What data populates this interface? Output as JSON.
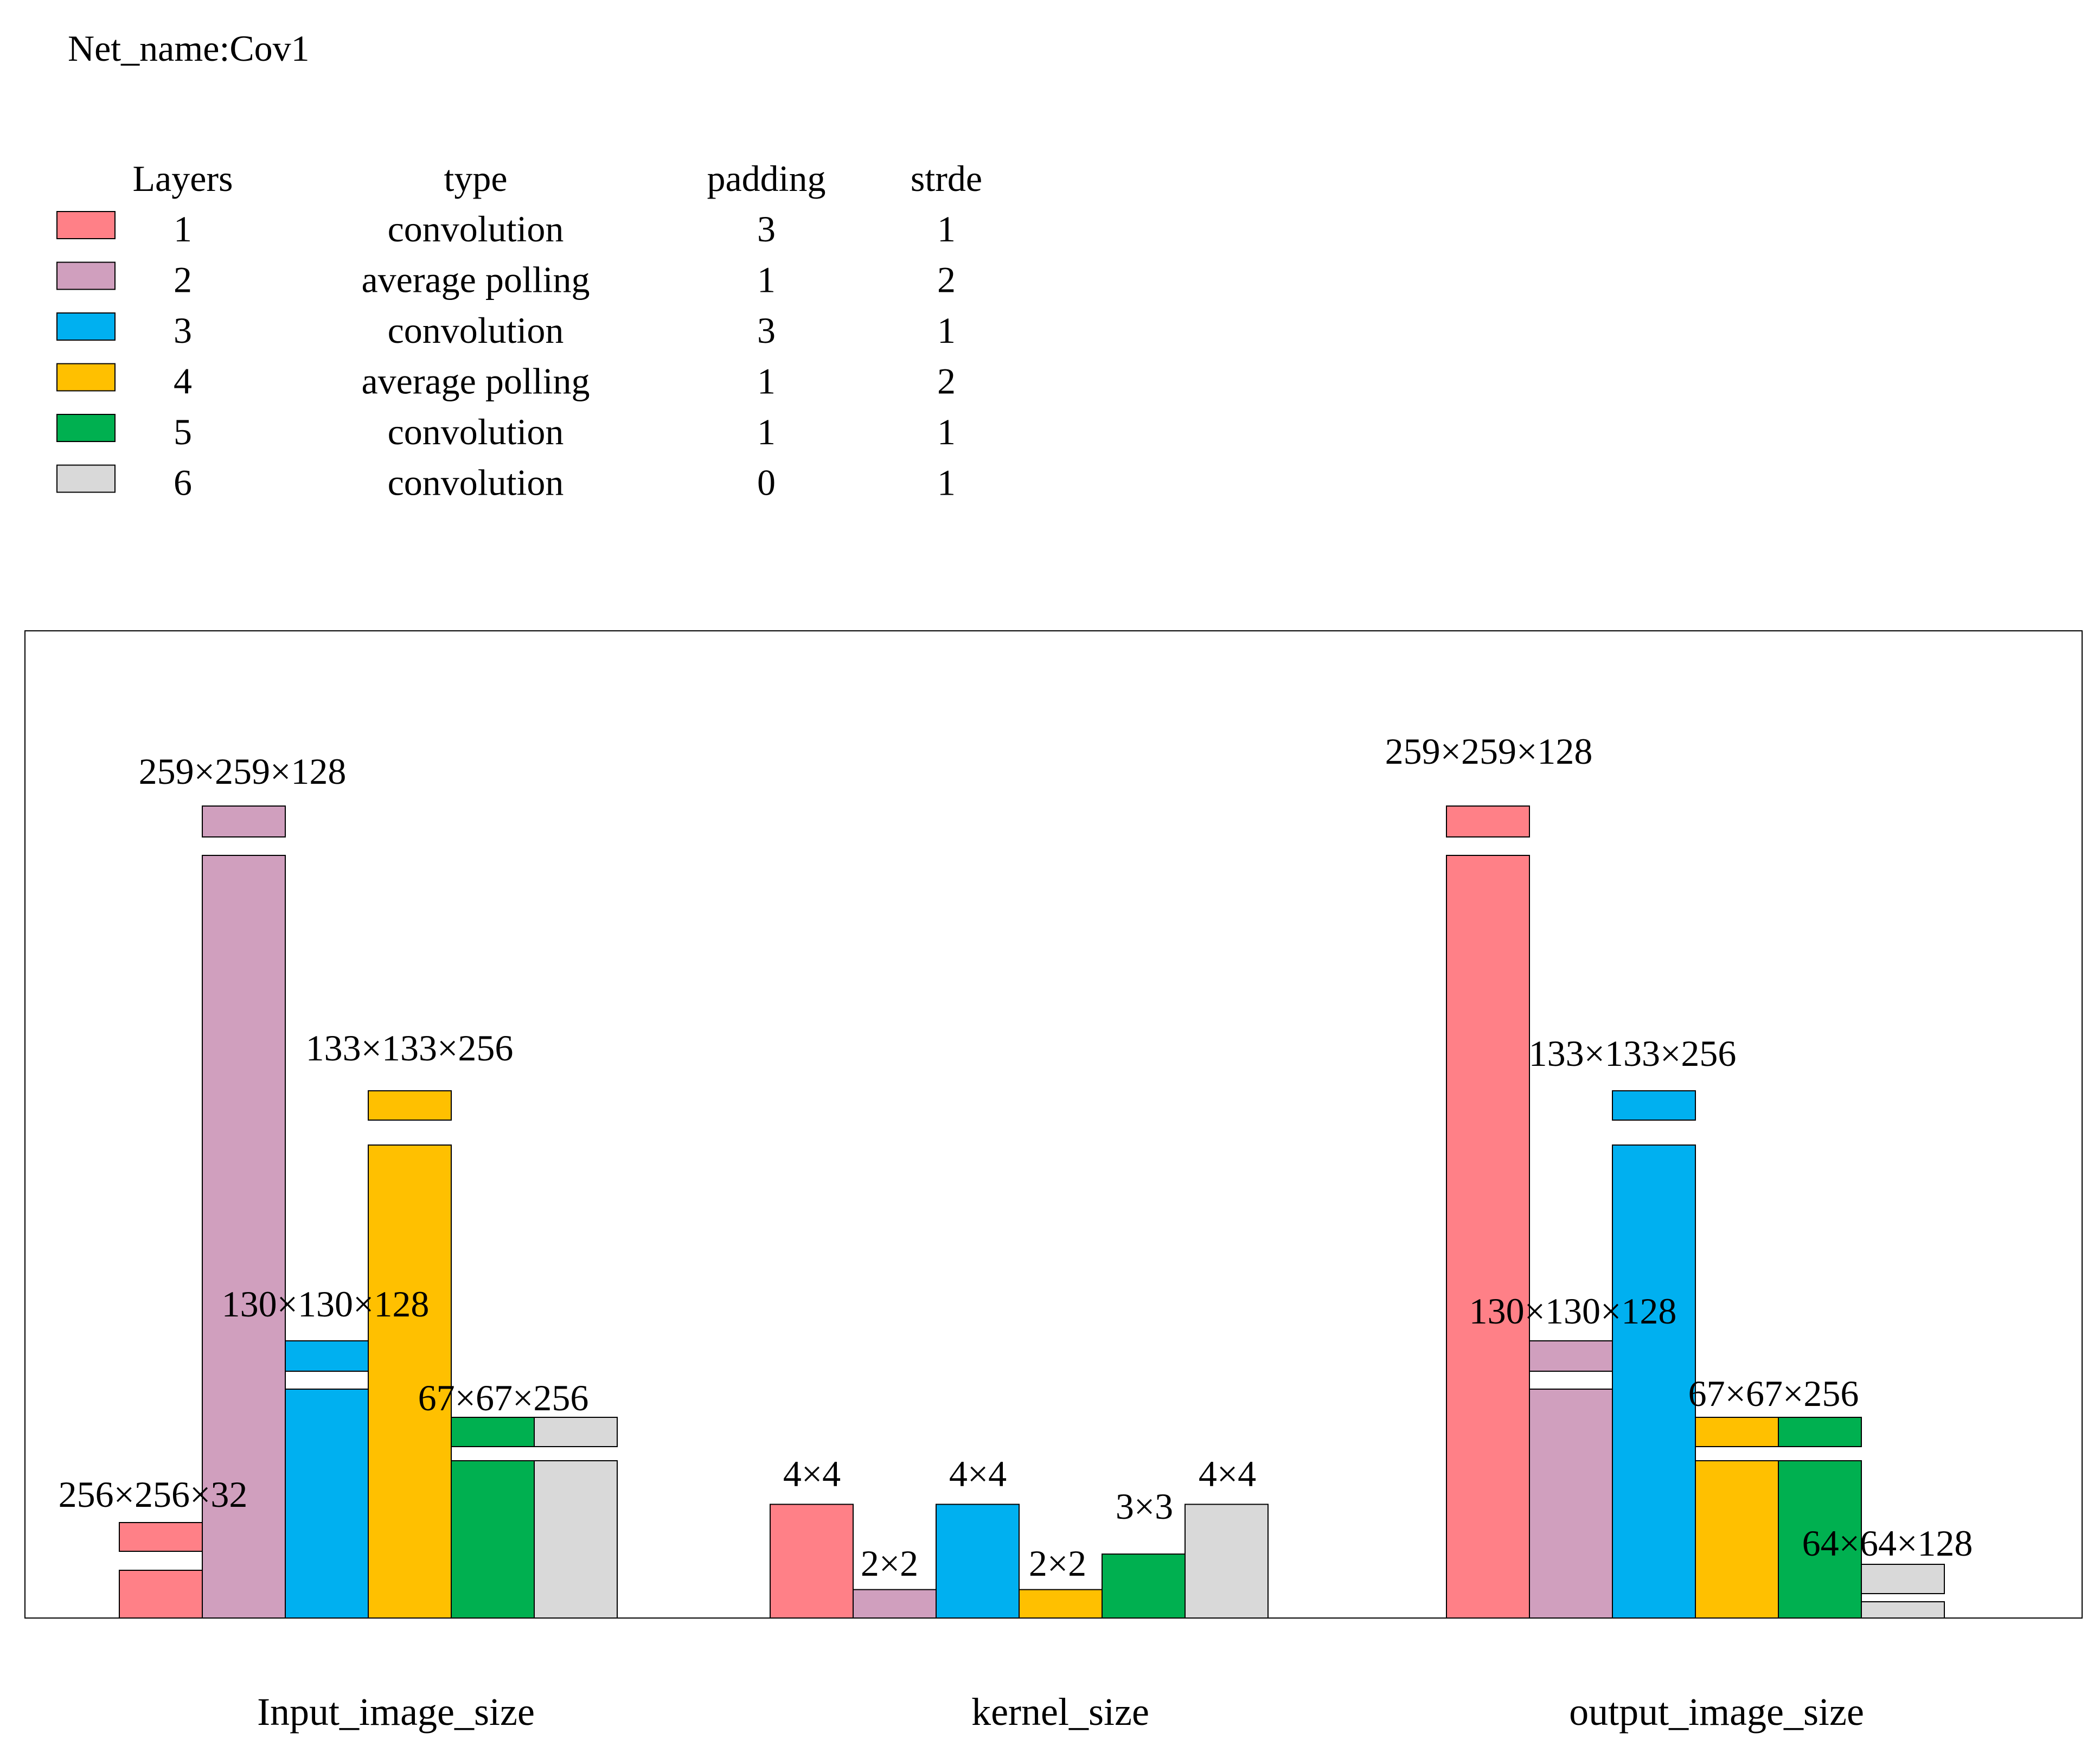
{
  "net_name": "Net_name:Cov1",
  "legend": {
    "headers": [
      "Layers",
      "type",
      "padding",
      "strde"
    ],
    "rows": [
      {
        "layer": "1",
        "type": "convolution",
        "padding": "3",
        "stride": "1",
        "color": "#ff8087"
      },
      {
        "layer": "2",
        "type": "average polling",
        "padding": "1",
        "stride": "2",
        "color": "#d09fbe"
      },
      {
        "layer": "3",
        "type": "convolution",
        "padding": "3",
        "stride": "1",
        "color": "#00b0f0"
      },
      {
        "layer": "4",
        "type": "average polling",
        "padding": "1",
        "stride": "2",
        "color": "#ffc000"
      },
      {
        "layer": "5",
        "type": "convolution",
        "padding": "1",
        "stride": "1",
        "color": "#00b050"
      },
      {
        "layer": "6",
        "type": "convolution",
        "padding": "0",
        "stride": "1",
        "color": "#d9d9d9"
      }
    ]
  },
  "chart_data": {
    "type": "bar",
    "axis_broken": true,
    "categories": [
      "Input_image_size",
      "kernel_size",
      "output_image_size"
    ],
    "series": [
      {
        "name": "1",
        "color": "#ff8087",
        "values": [
          2097152,
          16,
          8586368
        ],
        "labels": [
          "256×256×32",
          "4×4",
          "259×259×128"
        ]
      },
      {
        "name": "2",
        "color": "#d09fbe",
        "values": [
          8586368,
          4,
          2163200
        ],
        "labels": [
          "259×259×128",
          "2×2",
          "130×130×128"
        ]
      },
      {
        "name": "3",
        "color": "#00b0f0",
        "values": [
          2163200,
          16,
          4528384
        ],
        "labels": [
          "130×130×128",
          "4×4",
          "133×133×256"
        ]
      },
      {
        "name": "4",
        "color": "#ffc000",
        "values": [
          4528384,
          4,
          1149184
        ],
        "labels": [
          "133×133×256",
          "2×2",
          "67×67×256"
        ]
      },
      {
        "name": "5",
        "color": "#00b050",
        "values": [
          1149184,
          9,
          1149184
        ],
        "labels": [
          "67×67×256",
          "3×3",
          "67×67×256"
        ]
      },
      {
        "name": "6",
        "color": "#d9d9d9",
        "values": [
          1149184,
          16,
          524288
        ],
        "labels": [
          "67×67×256",
          "4×4",
          "64×64×128"
        ]
      }
    ],
    "annotations": {
      "Input_image_size": [
        "256×256×32",
        "259×259×128",
        "130×130×128",
        "133×133×256",
        "67×67×256"
      ],
      "kernel_size": [
        "4×4",
        "2×2",
        "4×4",
        "2×2",
        "3×3",
        "4×4"
      ],
      "output_image_size": [
        "259×259×128",
        "130×130×128",
        "133×133×256",
        "67×67×256",
        "64×64×128"
      ]
    },
    "grid": false,
    "legend_position": "top-left"
  }
}
